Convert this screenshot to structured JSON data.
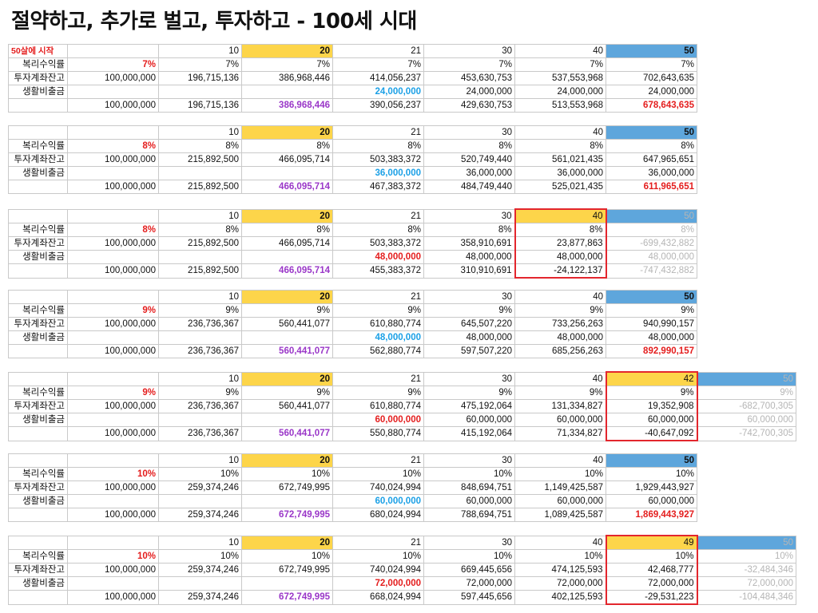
{
  "title": "절약하고, 추가로 벌고, 투자하고 - 100세 시대",
  "start_label": "50살에 시작",
  "row_labels": [
    "복리수익률",
    "투자계좌잔고",
    "생활비출금"
  ],
  "blocks": [
    {
      "years": [
        "10",
        "20",
        "21",
        "30",
        "40",
        "50"
      ],
      "rate": [
        "7%",
        "7%",
        "7%",
        "7%",
        "7%",
        "7%",
        "7%"
      ],
      "balance": [
        "100,000,000",
        "196,715,136",
        "386,968,446",
        "414,056,237",
        "453,630,753",
        "537,553,968",
        "702,643,635"
      ],
      "expense": [
        "",
        "",
        "",
        "24,000,000",
        "24,000,000",
        "24,000,000",
        "24,000,000"
      ],
      "net": [
        "100,000,000",
        "196,715,136",
        "386,968,446",
        "390,056,237",
        "429,630,753",
        "513,553,968",
        "678,643,635"
      ]
    },
    {
      "years": [
        "10",
        "20",
        "21",
        "30",
        "40",
        "50"
      ],
      "rate": [
        "8%",
        "8%",
        "8%",
        "8%",
        "8%",
        "8%",
        "8%"
      ],
      "balance": [
        "100,000,000",
        "215,892,500",
        "466,095,714",
        "503,383,372",
        "520,749,440",
        "561,021,435",
        "647,965,651"
      ],
      "expense": [
        "",
        "",
        "",
        "36,000,000",
        "36,000,000",
        "36,000,000",
        "36,000,000"
      ],
      "net": [
        "100,000,000",
        "215,892,500",
        "466,095,714",
        "467,383,372",
        "484,749,440",
        "525,021,435",
        "611,965,651"
      ]
    },
    {
      "years": [
        "10",
        "20",
        "21",
        "30",
        "40",
        "50"
      ],
      "rate": [
        "8%",
        "8%",
        "8%",
        "8%",
        "8%",
        "8%",
        "8%"
      ],
      "balance": [
        "100,000,000",
        "215,892,500",
        "466,095,714",
        "503,383,372",
        "358,910,691",
        "23,877,863",
        "-699,432,882"
      ],
      "expense": [
        "",
        "",
        "",
        "48,000,000",
        "48,000,000",
        "48,000,000",
        "48,000,000"
      ],
      "net": [
        "100,000,000",
        "215,892,500",
        "466,095,714",
        "455,383,372",
        "310,910,691",
        "-24,122,137",
        "-747,432,882"
      ]
    },
    {
      "years": [
        "10",
        "20",
        "21",
        "30",
        "40",
        "50"
      ],
      "rate": [
        "9%",
        "9%",
        "9%",
        "9%",
        "9%",
        "9%",
        "9%"
      ],
      "balance": [
        "100,000,000",
        "236,736,367",
        "560,441,077",
        "610,880,774",
        "645,507,220",
        "733,256,263",
        "940,990,157"
      ],
      "expense": [
        "",
        "",
        "",
        "48,000,000",
        "48,000,000",
        "48,000,000",
        "48,000,000"
      ],
      "net": [
        "100,000,000",
        "236,736,367",
        "560,441,077",
        "562,880,774",
        "597,507,220",
        "685,256,263",
        "892,990,157"
      ]
    },
    {
      "years": [
        "10",
        "20",
        "21",
        "30",
        "40",
        "42",
        "50"
      ],
      "rate": [
        "9%",
        "9%",
        "9%",
        "9%",
        "9%",
        "9%",
        "9%",
        "9%"
      ],
      "balance": [
        "100,000,000",
        "236,736,367",
        "560,441,077",
        "610,880,774",
        "475,192,064",
        "131,334,827",
        "19,352,908",
        "-682,700,305"
      ],
      "expense": [
        "",
        "",
        "",
        "60,000,000",
        "60,000,000",
        "60,000,000",
        "60,000,000",
        "60,000,000"
      ],
      "net": [
        "100,000,000",
        "236,736,367",
        "560,441,077",
        "550,880,774",
        "415,192,064",
        "71,334,827",
        "-40,647,092",
        "-742,700,305"
      ]
    },
    {
      "years": [
        "10",
        "20",
        "21",
        "30",
        "40",
        "50"
      ],
      "rate": [
        "10%",
        "10%",
        "10%",
        "10%",
        "10%",
        "10%",
        "10%"
      ],
      "balance": [
        "100,000,000",
        "259,374,246",
        "672,749,995",
        "740,024,994",
        "848,694,751",
        "1,149,425,587",
        "1,929,443,927"
      ],
      "expense": [
        "",
        "",
        "",
        "60,000,000",
        "60,000,000",
        "60,000,000",
        "60,000,000"
      ],
      "net": [
        "100,000,000",
        "259,374,246",
        "672,749,995",
        "680,024,994",
        "788,694,751",
        "1,089,425,587",
        "1,869,443,927"
      ]
    },
    {
      "years": [
        "10",
        "20",
        "21",
        "30",
        "40",
        "49",
        "50"
      ],
      "rate": [
        "10%",
        "10%",
        "10%",
        "10%",
        "10%",
        "10%",
        "10%",
        "10%"
      ],
      "balance": [
        "100,000,000",
        "259,374,246",
        "672,749,995",
        "740,024,994",
        "669,445,656",
        "474,125,593",
        "42,468,777",
        "-32,484,346"
      ],
      "expense": [
        "",
        "",
        "",
        "72,000,000",
        "72,000,000",
        "72,000,000",
        "72,000,000",
        "72,000,000"
      ],
      "net": [
        "100,000,000",
        "259,374,246",
        "672,749,995",
        "668,024,994",
        "597,445,656",
        "402,125,593",
        "-29,531,223",
        "-104,484,346"
      ]
    }
  ],
  "colors": {
    "year20": "#fdd54a",
    "year50": "#5ea6dc",
    "highlight_border": "#e3262d",
    "rate": "#e41d1d",
    "expense_start_blue": "#1ba0e6",
    "expense_start_red": "#e41d1d",
    "year20_net": "#9a37c8",
    "year50_net": "#e41d1d",
    "after_depletion": "#b5b5b5"
  }
}
